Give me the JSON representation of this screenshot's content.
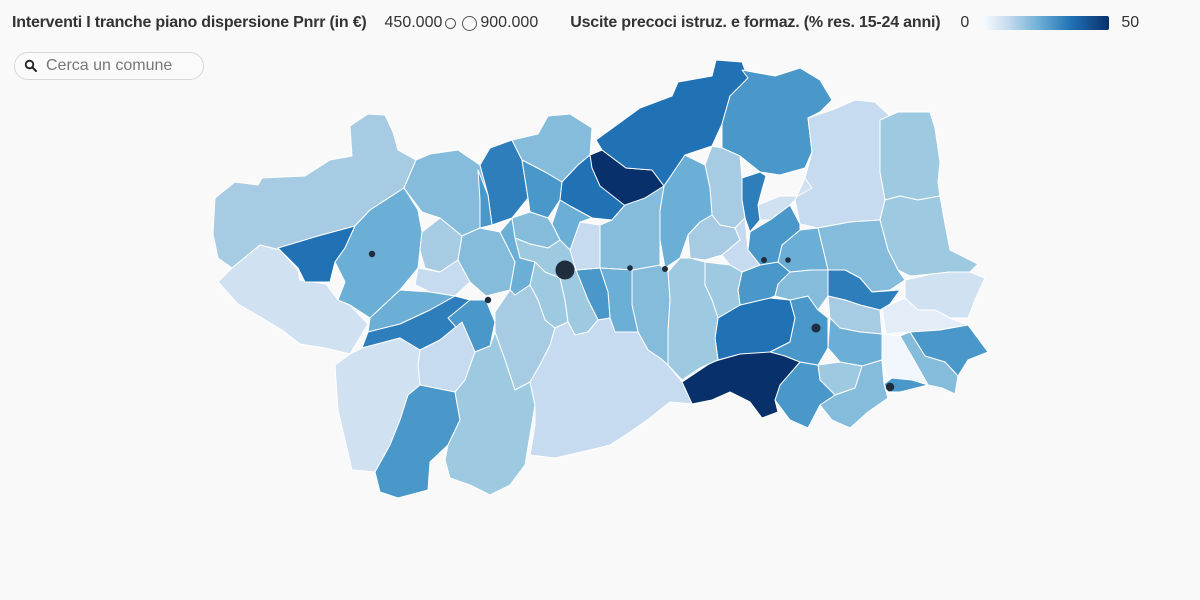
{
  "legend": {
    "size_title": "Interventi I tranche piano dispersione Pnrr (in €)",
    "size_min": "450.000",
    "size_max": "900.000",
    "color_title": "Uscite precoci istruz. e formaz. (% res. 15-24 anni)",
    "color_min": "0",
    "color_max": "50"
  },
  "search": {
    "placeholder": "Cerca un comune",
    "value": ""
  },
  "colors": {
    "c1": "#f7fbff",
    "c2": "#d0e1f2",
    "c3": "#c6dbef",
    "c4": "#9ecae1",
    "c5": "#85bcdc",
    "c6": "#6baed6",
    "c7": "#4a98c9",
    "c8": "#2f7ebc",
    "c9": "#2171b5",
    "c10": "#08306b"
  },
  "icons": {
    "search": "search-icon"
  }
}
